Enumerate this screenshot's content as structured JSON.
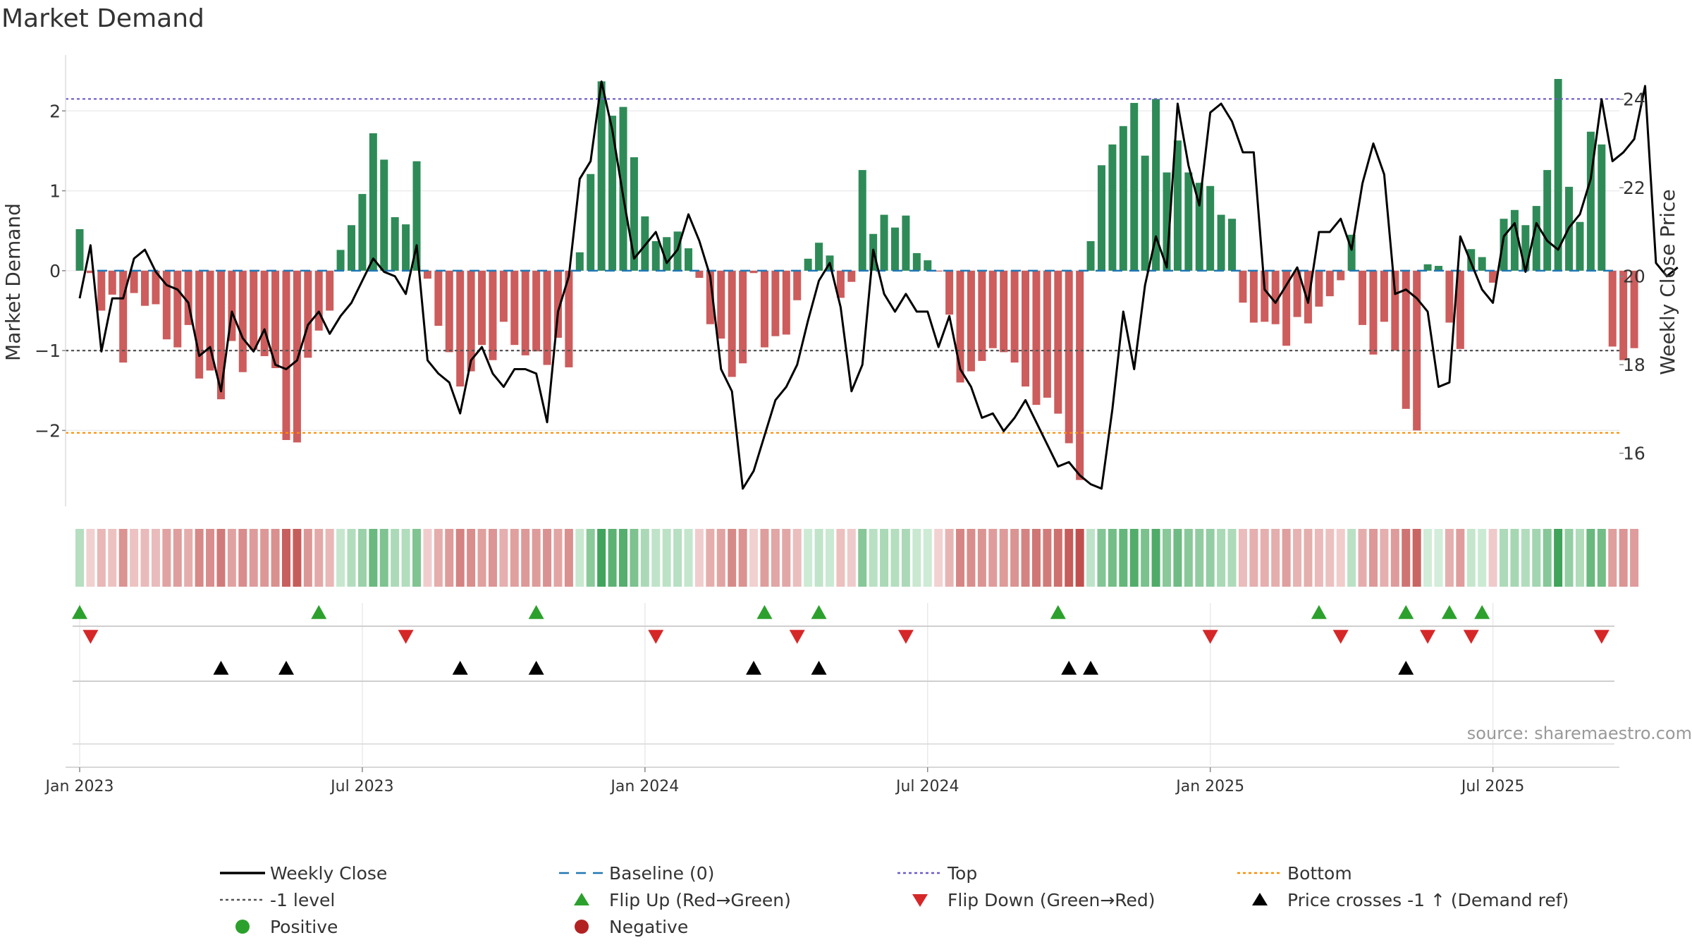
{
  "title": "Market Demand",
  "source": "source: sharemaestro.com",
  "colors": {
    "positive": "#2e8b57",
    "negative": "#cd5c5c",
    "price": "#000000",
    "baseline": "#1f77b4",
    "top": "#6a5acd",
    "bottom": "#ff8c00",
    "level": "#555555",
    "flip_up": "#2ca02c",
    "flip_down": "#d62728",
    "cross": "#000000",
    "legend_positive": "#2ca02c",
    "legend_negative": "#b22222"
  },
  "chart_data": {
    "type": "bar",
    "title": "Market Demand",
    "ylabel": "Market Demand",
    "y2label": "Weekly Close Price",
    "ylim": [
      -2.95,
      2.7
    ],
    "y2lim": [
      14.8,
      25.0
    ],
    "yticks": [
      -2,
      -1,
      0,
      1,
      2
    ],
    "yticklabels": [
      "−2",
      "−1",
      "0",
      "1",
      "2"
    ],
    "y2ticks": [
      16,
      18,
      20,
      22,
      24
    ],
    "y2ticklabels": [
      "16",
      "18",
      "20",
      "22",
      "24"
    ],
    "xticks": [
      "Jan 2023",
      "Jul 2023",
      "Jan 2024",
      "Jul 2024",
      "Jan 2025",
      "Jul 2025"
    ],
    "xtick_weeks": [
      0,
      26,
      52,
      78,
      104,
      130
    ],
    "top_level": 2.15,
    "bottom_level": -2.03,
    "minus_one_level": -1,
    "baseline": 0,
    "demand": [
      0.52,
      -0.03,
      -0.5,
      -0.3,
      -1.15,
      -0.28,
      -0.44,
      -0.42,
      -0.86,
      -0.96,
      -0.68,
      -1.35,
      -1.25,
      -1.61,
      -0.88,
      -1.27,
      -0.99,
      -1.07,
      -1.22,
      -2.12,
      -2.15,
      -1.09,
      -0.75,
      -0.5,
      0.26,
      0.57,
      0.96,
      1.72,
      1.39,
      0.67,
      0.58,
      1.37,
      -0.1,
      -0.69,
      -1.02,
      -1.45,
      -1.26,
      -0.93,
      -1.12,
      -0.64,
      -0.93,
      -1.06,
      -1.01,
      -1.18,
      -0.84,
      -1.21,
      0.23,
      1.21,
      2.37,
      1.94,
      2.05,
      1.42,
      0.68,
      0.37,
      0.42,
      0.49,
      0.28,
      -0.09,
      -0.67,
      -0.85,
      -1.33,
      -1.16,
      -0.03,
      -0.96,
      -0.82,
      -0.8,
      -0.37,
      0.15,
      0.35,
      0.19,
      -0.34,
      -0.14,
      1.26,
      0.46,
      0.7,
      0.54,
      0.69,
      0.22,
      0.13,
      -0.01,
      -0.55,
      -1.4,
      -1.26,
      -1.13,
      -0.97,
      -1.02,
      -1.15,
      -1.45,
      -1.68,
      -1.59,
      -1.79,
      -2.16,
      -2.62,
      0.37,
      1.32,
      1.58,
      1.81,
      2.1,
      1.44,
      2.15,
      1.23,
      1.63,
      1.23,
      1.1,
      1.06,
      0.7,
      0.65,
      -0.4,
      -0.65,
      -0.64,
      -0.67,
      -0.94,
      -0.58,
      -0.66,
      -0.45,
      -0.32,
      -0.12,
      0.45,
      -0.68,
      -1.05,
      -0.64,
      -1.0,
      -1.73,
      -2.0,
      0.08,
      0.06,
      -0.65,
      -0.98,
      0.27,
      0.17,
      -0.15,
      0.65,
      0.76,
      0.57,
      0.81,
      1.26,
      2.4,
      1.05,
      0.61,
      1.74,
      1.58,
      -0.95,
      -1.12,
      -0.97
    ],
    "price": [
      19.5,
      20.7,
      18.3,
      19.5,
      19.5,
      20.4,
      20.6,
      20.1,
      19.8,
      19.7,
      19.4,
      18.2,
      18.4,
      17.4,
      19.2,
      18.6,
      18.3,
      18.8,
      18.0,
      17.9,
      18.1,
      18.9,
      19.2,
      18.7,
      19.1,
      19.4,
      19.9,
      20.4,
      20.1,
      20.0,
      19.6,
      20.7,
      18.1,
      17.8,
      17.6,
      16.9,
      18.1,
      18.4,
      17.8,
      17.5,
      17.9,
      17.9,
      17.8,
      16.7,
      19.2,
      20.0,
      22.2,
      22.6,
      24.4,
      23.3,
      21.8,
      20.4,
      20.7,
      21.0,
      20.3,
      20.6,
      21.4,
      20.8,
      20.0,
      17.9,
      17.4,
      15.2,
      15.6,
      16.4,
      17.2,
      17.5,
      18.0,
      19.0,
      19.9,
      20.3,
      19.3,
      17.4,
      18.0,
      20.6,
      19.6,
      19.2,
      19.6,
      19.2,
      19.2,
      18.4,
      19.1,
      17.9,
      17.5,
      16.8,
      16.9,
      16.5,
      16.8,
      17.2,
      16.7,
      16.2,
      15.7,
      15.8,
      15.5,
      15.3,
      15.2,
      17.0,
      19.2,
      17.9,
      19.8,
      20.9,
      20.2,
      23.9,
      22.5,
      21.6,
      23.7,
      23.9,
      23.5,
      22.8,
      22.8,
      19.7,
      19.4,
      19.8,
      20.2,
      19.4,
      21.0,
      21.0,
      21.3,
      20.6,
      22.1,
      23.0,
      22.3,
      19.6,
      19.7,
      19.5,
      19.2,
      17.5,
      17.6,
      20.9,
      20.3,
      19.7,
      19.4,
      20.9,
      21.2,
      20.1,
      21.2,
      20.8,
      20.6,
      21.1,
      21.4,
      22.2,
      24.0,
      22.6,
      22.8,
      23.1,
      24.3,
      20.3,
      20.0,
      20.2
    ],
    "flip_up_weeks": [
      0,
      22,
      42,
      63,
      68,
      90,
      114,
      122,
      126,
      129
    ],
    "flip_down_weeks": [
      1,
      30,
      53,
      66,
      76,
      104,
      116,
      124,
      128,
      140
    ],
    "cross_weeks": [
      13,
      19,
      35,
      42,
      62,
      68,
      91,
      93,
      122
    ]
  },
  "legend": [
    {
      "label": "Weekly Close",
      "type": "line",
      "style": "solid",
      "color": "#000000"
    },
    {
      "label": "Baseline (0)",
      "type": "line",
      "style": "dashed",
      "color": "#1f77b4"
    },
    {
      "label": "Top",
      "type": "line",
      "style": "dotted",
      "color": "#6a5acd"
    },
    {
      "label": "Bottom",
      "type": "line",
      "style": "dotted",
      "color": "#ff8c00"
    },
    {
      "label": "-1 level",
      "type": "line",
      "style": "dotted",
      "color": "#555555"
    },
    {
      "label": "Flip Up (Red→Green)",
      "type": "tri-up",
      "color": "#2ca02c"
    },
    {
      "label": "Flip Down (Green→Red)",
      "type": "tri-down",
      "color": "#d62728"
    },
    {
      "label": "Price crosses -1 ↑ (Demand ref)",
      "type": "tri-up",
      "color": "#000000"
    },
    {
      "label": "Positive",
      "type": "dot",
      "color": "#2ca02c"
    },
    {
      "label": "Negative",
      "type": "dot",
      "color": "#b22222"
    }
  ]
}
